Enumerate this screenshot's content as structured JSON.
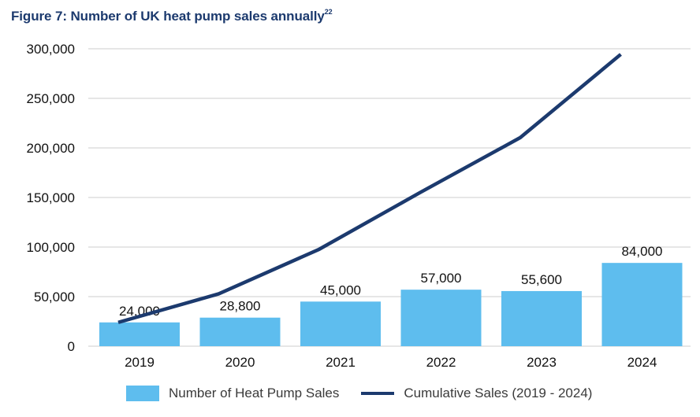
{
  "title": "Figure 7: Number of UK heat pump sales annually",
  "title_footnote": "22",
  "colors": {
    "bar": "#5ebdee",
    "line": "#1c3a6e",
    "title": "#1c3a6e",
    "grid": "#d6d6d6"
  },
  "chart_data": {
    "type": "bar",
    "title": "Figure 7: Number of UK heat pump sales annually",
    "xlabel": "",
    "ylabel": "",
    "ylim": [
      0,
      300000
    ],
    "yticks": [
      0,
      50000,
      100000,
      150000,
      200000,
      250000,
      300000
    ],
    "ytick_labels": [
      "0",
      "50,000",
      "100,000",
      "150,000",
      "200,000",
      "250,000",
      "300,000"
    ],
    "grid": true,
    "legend_position": "bottom",
    "categories": [
      "2019",
      "2020",
      "2021",
      "2022",
      "2023",
      "2024"
    ],
    "series": [
      {
        "name": "Number of Heat Pump Sales",
        "type": "bar",
        "values": [
          24000,
          28800,
          45000,
          57000,
          55600,
          84000
        ],
        "labels": [
          "24,000",
          "28,800",
          "45,000",
          "57,000",
          "55,600",
          "84,000"
        ]
      },
      {
        "name": "Cumulative Sales (2019 - 2024)",
        "type": "line",
        "values": [
          24000,
          52800,
          97800,
          154800,
          210400,
          294400
        ]
      }
    ]
  }
}
